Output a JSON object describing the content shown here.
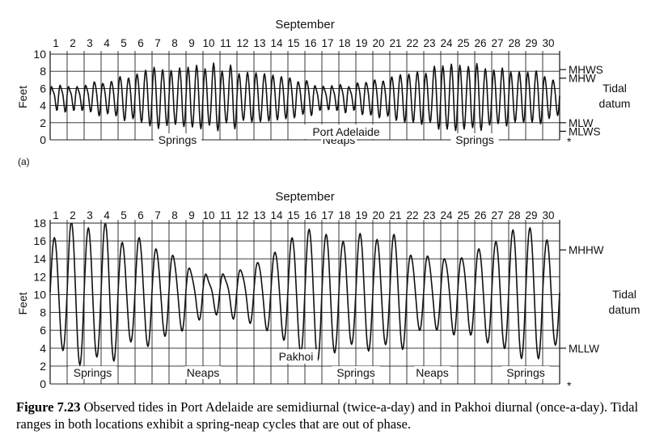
{
  "chart_data": [
    {
      "type": "line",
      "panel_label": "(a)",
      "title": "September",
      "ylabel": "Feet",
      "ylim": [
        0,
        10
      ],
      "yticks": [
        0,
        2,
        4,
        6,
        8,
        10
      ],
      "x_day_labels": [
        "1",
        "2",
        "3",
        "4",
        "5",
        "6",
        "7",
        "8",
        "9",
        "10",
        "11",
        "12",
        "13",
        "14",
        "15",
        "16",
        "17",
        "18",
        "19",
        "20",
        "21",
        "22",
        "23",
        "24",
        "25",
        "26",
        "27",
        "28",
        "29",
        "30"
      ],
      "datum_levels": [
        {
          "name": "MHWS",
          "value": 8.2
        },
        {
          "name": "MHW",
          "value": 7.2
        },
        {
          "name": "MLW",
          "value": 2.0
        },
        {
          "name": "MLWS",
          "value": 1.0
        }
      ],
      "datum_label": "Tidal datum",
      "station_label": "Port Adelaide",
      "phase_labels": [
        {
          "text": "Springs",
          "day_start": 1,
          "day_end": 15
        },
        {
          "text": "Neaps",
          "day_start": 15,
          "day_end": 20
        },
        {
          "text": "Springs",
          "day_start": 21,
          "day_end": 30
        }
      ],
      "series": [
        {
          "cycles_per_day": 2,
          "day_spring_centers": [
            9,
            25
          ],
          "mean_level": 5.0,
          "spring_amplitude": 3.6,
          "neap_amplitude": 0.9
        }
      ]
    },
    {
      "type": "line",
      "title": "September",
      "ylabel": "Feet",
      "ylim": [
        0,
        18
      ],
      "yticks": [
        0,
        2,
        4,
        6,
        8,
        10,
        12,
        14,
        16,
        18
      ],
      "x_day_labels": [
        "1",
        "2",
        "3",
        "4",
        "5",
        "6",
        "7",
        "8",
        "9",
        "10",
        "11",
        "12",
        "13",
        "14",
        "15",
        "16",
        "17",
        "18",
        "19",
        "20",
        "21",
        "22",
        "23",
        "24",
        "25",
        "26",
        "27",
        "28",
        "29",
        "30"
      ],
      "datum_levels": [
        {
          "name": "MHHW",
          "value": 15.0
        },
        {
          "name": "MLLW",
          "value": 4.0
        }
      ],
      "datum_label": "Tidal datum",
      "station_label": "Pakhoi",
      "phase_labels": [
        {
          "text": "Springs",
          "day_start": 1,
          "day_end": 5
        },
        {
          "text": "Neaps",
          "day_start": 8,
          "day_end": 11
        },
        {
          "text": "Springs",
          "day_start": 17,
          "day_end": 20
        },
        {
          "text": "Neaps",
          "day_start": 22,
          "day_end": 24
        },
        {
          "text": "Springs",
          "day_start": 27,
          "day_end": 30
        }
      ],
      "series": [
        {
          "cycles_per_day": 1,
          "day_spring_centers": [
            2,
            17.5,
            29
          ],
          "mean_level": 10.2,
          "spring_amplitude": 7.0,
          "neap_amplitude": 1.3
        }
      ]
    }
  ],
  "caption": {
    "figure_label": "Figure 7.23",
    "text": " Observed tides in Port Adelaide are semidiurnal (twice-a-day) and in Pakhoi diurnal (once-a-day). Tidal ranges in both locations exhibit a spring-neap cycles that are out of phase."
  }
}
